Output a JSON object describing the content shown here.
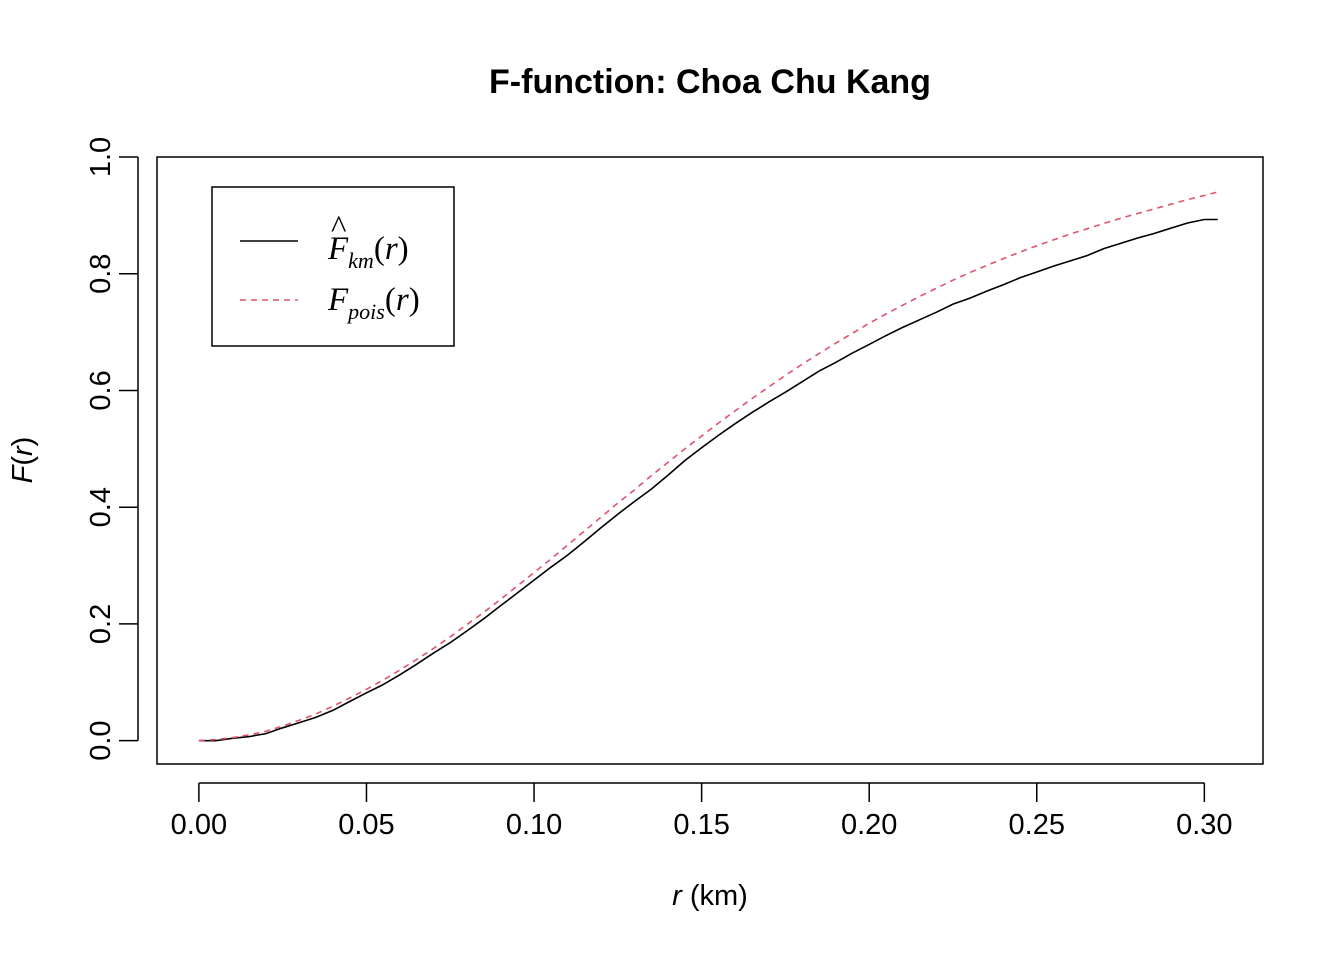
{
  "chart_data": {
    "type": "line",
    "title": "F-function: Choa Chu Kang",
    "xlabel": {
      "var": "r",
      "unit": " (km)"
    },
    "ylabel": {
      "fn": "F",
      "open": "(",
      "var": "r",
      "close": ")"
    },
    "xlim": [
      -0.0125,
      0.3175
    ],
    "ylim": [
      -0.04,
      1.0
    ],
    "x_ticks": [
      0.0,
      0.05,
      0.1,
      0.15,
      0.2,
      0.25,
      0.3
    ],
    "x_tick_labels": [
      "0.00",
      "0.05",
      "0.10",
      "0.15",
      "0.20",
      "0.25",
      "0.30"
    ],
    "y_ticks": [
      0.0,
      0.2,
      0.4,
      0.6,
      0.8,
      1.0
    ],
    "y_tick_labels": [
      "0.0",
      "0.2",
      "0.4",
      "0.6",
      "0.8",
      "1.0"
    ],
    "grid": false,
    "legend_position": "top-left",
    "series": [
      {
        "legend": {
          "fn": "F",
          "hat": "^",
          "sub": "km",
          "open": "(",
          "var": "r",
          "close": ")"
        },
        "color": "#000000",
        "dash": "solid",
        "x": [
          0.0,
          0.005,
          0.01,
          0.015,
          0.02,
          0.025,
          0.03,
          0.035,
          0.04,
          0.045,
          0.05,
          0.055,
          0.06,
          0.065,
          0.07,
          0.075,
          0.08,
          0.085,
          0.09,
          0.095,
          0.1,
          0.105,
          0.11,
          0.115,
          0.12,
          0.125,
          0.13,
          0.135,
          0.14,
          0.145,
          0.15,
          0.155,
          0.16,
          0.165,
          0.17,
          0.175,
          0.18,
          0.185,
          0.19,
          0.195,
          0.2,
          0.205,
          0.21,
          0.215,
          0.22,
          0.225,
          0.23,
          0.235,
          0.24,
          0.245,
          0.25,
          0.255,
          0.26,
          0.265,
          0.27,
          0.275,
          0.28,
          0.285,
          0.29,
          0.295,
          0.3,
          0.304
        ],
        "y": [
          0.0,
          0.0,
          0.004,
          0.007,
          0.012,
          0.022,
          0.031,
          0.04,
          0.052,
          0.067,
          0.082,
          0.096,
          0.113,
          0.131,
          0.15,
          0.168,
          0.188,
          0.209,
          0.231,
          0.253,
          0.275,
          0.297,
          0.318,
          0.341,
          0.365,
          0.388,
          0.41,
          0.431,
          0.455,
          0.48,
          0.502,
          0.523,
          0.543,
          0.562,
          0.58,
          0.597,
          0.615,
          0.633,
          0.648,
          0.664,
          0.679,
          0.694,
          0.708,
          0.721,
          0.734,
          0.748,
          0.758,
          0.77,
          0.781,
          0.793,
          0.803,
          0.813,
          0.822,
          0.831,
          0.843,
          0.852,
          0.861,
          0.869,
          0.878,
          0.887,
          0.893,
          0.893
        ]
      },
      {
        "legend": {
          "fn": "F",
          "sub": "pois",
          "open": "(",
          "var": "r",
          "close": ")"
        },
        "color": "#DF536B",
        "dash": "dashed",
        "x": [
          0.0,
          0.005,
          0.01,
          0.015,
          0.02,
          0.025,
          0.03,
          0.035,
          0.04,
          0.045,
          0.05,
          0.055,
          0.06,
          0.065,
          0.07,
          0.075,
          0.08,
          0.085,
          0.09,
          0.095,
          0.1,
          0.105,
          0.11,
          0.115,
          0.12,
          0.125,
          0.13,
          0.135,
          0.14,
          0.145,
          0.15,
          0.155,
          0.16,
          0.165,
          0.17,
          0.175,
          0.18,
          0.185,
          0.19,
          0.195,
          0.2,
          0.205,
          0.21,
          0.215,
          0.22,
          0.225,
          0.23,
          0.235,
          0.24,
          0.245,
          0.25,
          0.255,
          0.26,
          0.265,
          0.27,
          0.275,
          0.28,
          0.285,
          0.29,
          0.295,
          0.3,
          0.304
        ],
        "y": [
          0.0,
          0.002,
          0.005,
          0.01,
          0.016,
          0.025,
          0.035,
          0.046,
          0.059,
          0.073,
          0.088,
          0.104,
          0.121,
          0.139,
          0.158,
          0.178,
          0.199,
          0.22,
          0.242,
          0.265,
          0.288,
          0.311,
          0.335,
          0.359,
          0.383,
          0.407,
          0.43,
          0.454,
          0.477,
          0.5,
          0.522,
          0.544,
          0.565,
          0.586,
          0.606,
          0.626,
          0.645,
          0.663,
          0.681,
          0.698,
          0.715,
          0.731,
          0.746,
          0.761,
          0.775,
          0.789,
          0.802,
          0.814,
          0.826,
          0.837,
          0.848,
          0.858,
          0.868,
          0.877,
          0.886,
          0.895,
          0.903,
          0.911,
          0.919,
          0.927,
          0.934,
          0.94
        ]
      }
    ]
  }
}
